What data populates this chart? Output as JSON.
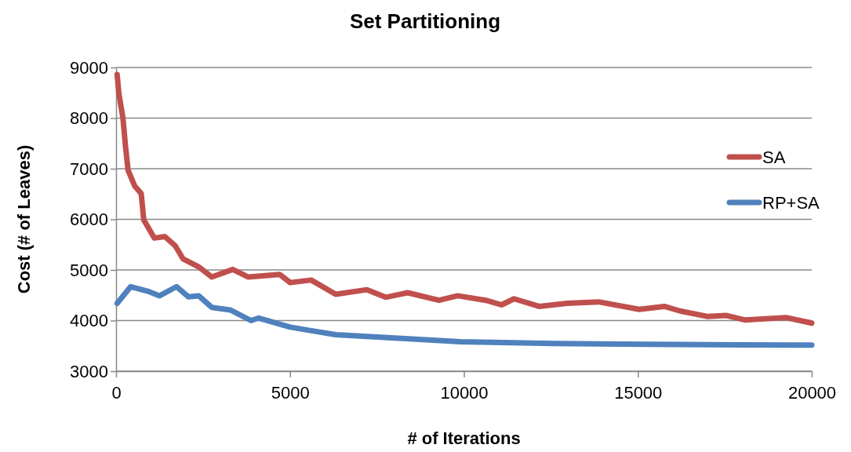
{
  "chart_data": {
    "type": "line",
    "title": "Set Partitioning",
    "xlabel": "# of Iterations",
    "ylabel": "Cost (# of Leaves)",
    "xlim": [
      0,
      20000
    ],
    "xticks": [
      0,
      5000,
      10000,
      15000,
      20000
    ],
    "ylim": [
      3000,
      9000
    ],
    "yticks": [
      3000,
      4000,
      5000,
      6000,
      7000,
      8000,
      9000
    ],
    "grid": "y",
    "legend": "right",
    "marker": "none",
    "line_style": "solid",
    "series": [
      {
        "name": "SA",
        "color": "#c0504d",
        "x": [
          30,
          83,
          196,
          271,
          345,
          534,
          722,
          796,
          1098,
          1398,
          1698,
          1924,
          2375,
          2751,
          3353,
          3804,
          4706,
          5006,
          5608,
          6313,
          7212,
          7752,
          8381,
          9281,
          9820,
          10630,
          11080,
          11440,
          12160,
          12970,
          13870,
          15040,
          15760,
          16210,
          17010,
          17550,
          18090,
          19260,
          20000
        ],
        "values": [
          8860,
          8470,
          8010,
          7440,
          6970,
          6660,
          6510,
          5990,
          5630,
          5660,
          5480,
          5220,
          5060,
          4860,
          5010,
          4860,
          4910,
          4750,
          4800,
          4520,
          4610,
          4460,
          4550,
          4400,
          4490,
          4400,
          4310,
          4430,
          4280,
          4340,
          4370,
          4220,
          4280,
          4190,
          4080,
          4100,
          4010,
          4060,
          3950
        ]
      },
      {
        "name": "RP+SA",
        "color": "#4f81bd",
        "x": [
          30,
          420,
          950,
          1250,
          1740,
          2075,
          2375,
          2750,
          3280,
          3880,
          4100,
          5006,
          5608,
          6313,
          8111,
          9910,
          12610,
          15310,
          18000,
          20000
        ],
        "values": [
          4340,
          4670,
          4570,
          4490,
          4670,
          4470,
          4490,
          4260,
          4210,
          4000,
          4050,
          3870,
          3800,
          3720,
          3650,
          3580,
          3545,
          3530,
          3520,
          3515
        ]
      }
    ]
  }
}
